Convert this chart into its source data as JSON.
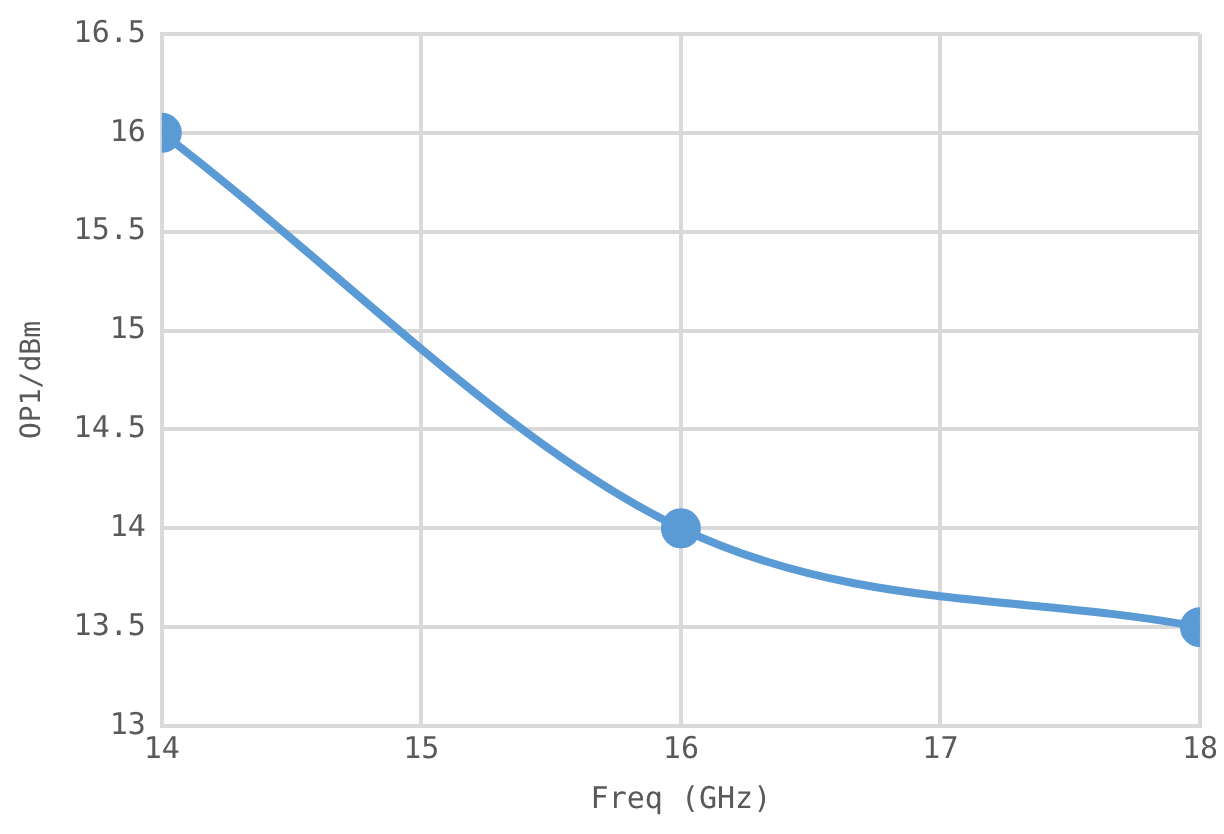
{
  "chart_data": {
    "type": "line",
    "xlabel": "Freq (GHz)",
    "ylabel": "OP1/dBm",
    "x": [
      14,
      16,
      18
    ],
    "series": [
      {
        "color": "#5b9bd5",
        "values": [
          16,
          14,
          13.5
        ]
      }
    ],
    "xlim": [
      14,
      18
    ],
    "xticks": [
      14,
      15,
      16,
      17,
      18
    ],
    "ylim": [
      13,
      16.5
    ],
    "yticks": [
      13,
      13.5,
      14,
      14.5,
      15,
      15.5,
      16,
      16.5
    ],
    "grid": true,
    "legend": false,
    "marker": "circle",
    "line_style": "solid"
  }
}
